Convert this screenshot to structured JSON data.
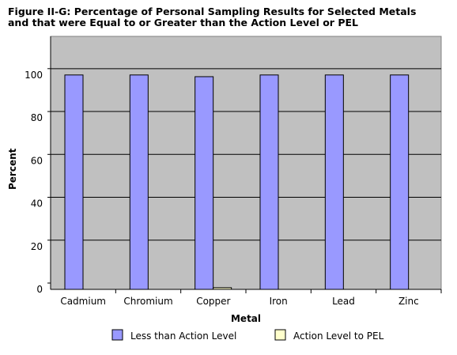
{
  "chart_data": {
    "type": "bar",
    "title_line1": "Figure II-G: Percentage of Personal Sampling Results for Selected Metals",
    "title_line2": "and that were Equal to or Greater than the Action Level or PEL",
    "xlabel": "Metal",
    "ylabel": "Percent",
    "categories": [
      "Cadmium",
      "Chromium",
      "Copper",
      "Iron",
      "Lead",
      "Zinc"
    ],
    "series": [
      {
        "name": "Less than Action Level",
        "values": [
          100,
          100,
          99.2,
          100,
          100,
          100
        ],
        "color": "#9999ff"
      },
      {
        "name": "Action Level to PEL",
        "values": [
          0,
          0,
          0.8,
          0,
          0,
          0
        ],
        "color": "#ffffcc"
      }
    ],
    "ylim": [
      0,
      100
    ],
    "yticks": [
      0,
      20,
      40,
      60,
      80,
      100
    ],
    "grid": true,
    "plot_background": "#c0c0c0",
    "legend_position": "bottom"
  }
}
